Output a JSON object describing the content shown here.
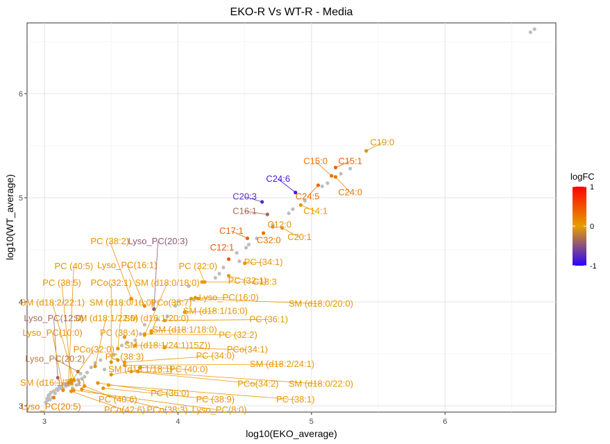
{
  "chart_data": {
    "type": "scatter",
    "title": "EKO-R Vs WT-R - Media",
    "xlabel": "log10(EKO_average)",
    "ylabel": "log10(WT_average)",
    "xlim": [
      2.87,
      6.83
    ],
    "ylim": [
      2.94,
      6.68
    ],
    "xticks": [
      "3",
      "4",
      "5",
      "6"
    ],
    "yticks": [
      "3",
      "4",
      "5",
      "6"
    ],
    "grid": true,
    "legend": {
      "title": "logFC",
      "position": "right",
      "ticks": [
        "1",
        "0",
        "-1"
      ],
      "colors": [
        "#ff0000",
        "#e69f00",
        "#2b00ff"
      ]
    },
    "gray_points": [
      [
        6.64,
        6.59
      ],
      [
        6.67,
        6.62
      ],
      [
        5.29,
        5.28
      ],
      [
        5.22,
        5.23
      ],
      [
        5.12,
        5.14
      ],
      [
        5.08,
        5.11
      ],
      [
        4.95,
        4.97
      ],
      [
        4.86,
        4.89
      ],
      [
        4.83,
        4.85
      ],
      [
        4.71,
        4.74
      ],
      [
        4.59,
        4.61
      ],
      [
        4.53,
        4.55
      ],
      [
        4.51,
        4.52
      ],
      [
        4.44,
        4.47
      ],
      [
        4.46,
        4.39
      ],
      [
        4.34,
        4.33
      ],
      [
        4.31,
        4.27
      ],
      [
        4.28,
        4.23
      ],
      [
        4.08,
        4.15
      ],
      [
        4.12,
        4.02
      ],
      [
        3.98,
        3.96
      ],
      [
        3.92,
        3.86
      ],
      [
        3.85,
        3.83
      ],
      [
        3.75,
        3.78
      ],
      [
        3.72,
        3.69
      ],
      [
        3.68,
        3.63
      ],
      [
        3.62,
        3.61
      ],
      [
        3.58,
        3.58
      ],
      [
        3.55,
        3.55
      ],
      [
        3.52,
        3.49
      ],
      [
        3.42,
        3.44
      ],
      [
        3.38,
        3.41
      ],
      [
        3.45,
        3.35
      ],
      [
        3.35,
        3.37
      ],
      [
        3.32,
        3.32
      ],
      [
        3.27,
        3.31
      ],
      [
        3.25,
        3.25
      ],
      [
        3.22,
        3.24
      ],
      [
        3.19,
        3.24
      ],
      [
        3.17,
        3.22
      ],
      [
        3.15,
        3.21
      ],
      [
        3.13,
        3.19
      ],
      [
        3.11,
        3.18
      ],
      [
        3.09,
        3.16
      ],
      [
        3.07,
        3.14
      ],
      [
        3.05,
        3.13
      ],
      [
        3.04,
        3.11
      ],
      [
        3.03,
        3.09
      ],
      [
        3.02,
        3.07
      ],
      [
        3.06,
        3.08
      ],
      [
        3.08,
        3.12
      ],
      [
        3.1,
        3.15
      ],
      [
        3.12,
        3.17
      ],
      [
        3.14,
        3.16
      ],
      [
        3.16,
        3.19
      ],
      [
        3.18,
        3.2
      ],
      [
        3.2,
        3.21
      ],
      [
        3.24,
        3.2
      ],
      [
        3.28,
        3.26
      ],
      [
        3.3,
        3.28
      ],
      [
        3.01,
        3.03
      ],
      [
        3.02,
        3.05
      ],
      [
        3.04,
        3.06
      ],
      [
        3.26,
        3.22
      ],
      [
        3.21,
        3.17
      ],
      [
        3.03,
        3.1
      ]
    ],
    "labeled_points": [
      {
        "label": "C19:0",
        "x": 5.41,
        "y": 5.45,
        "logFC": -0.05,
        "lx": 5.53,
        "ly": 5.53
      },
      {
        "label": "C15:1",
        "x": 5.18,
        "y": 5.29,
        "logFC": 0.4,
        "lx": 5.29,
        "ly": 5.35
      },
      {
        "label": "C15:0",
        "x": 5.15,
        "y": 5.21,
        "logFC": 0.3,
        "lx": 5.03,
        "ly": 5.35
      },
      {
        "label": "C24:0",
        "x": 5.18,
        "y": 5.2,
        "logFC": 0.25,
        "lx": 5.29,
        "ly": 5.05
      },
      {
        "label": "C24:6",
        "x": 4.88,
        "y": 5.05,
        "logFC": -0.85,
        "lx": 4.75,
        "ly": 5.18
      },
      {
        "label": "C24:5",
        "x": 5.05,
        "y": 5.12,
        "logFC": 0.35,
        "lx": 4.97,
        "ly": 5.01
      },
      {
        "label": "C20:3",
        "x": 4.63,
        "y": 4.96,
        "logFC": -0.75,
        "lx": 4.5,
        "ly": 5.01
      },
      {
        "label": "C14:1",
        "x": 4.92,
        "y": 4.93,
        "logFC": 0.05,
        "lx": 5.03,
        "ly": 4.87
      },
      {
        "label": "C16:1",
        "x": 4.67,
        "y": 4.84,
        "logFC": -0.35,
        "lx": 4.5,
        "ly": 4.87
      },
      {
        "label": "C12:0",
        "x": 4.71,
        "y": 4.72,
        "logFC": 0.1,
        "lx": 4.76,
        "ly": 4.74
      },
      {
        "label": "C17:1",
        "x": 4.52,
        "y": 4.61,
        "logFC": 0.4,
        "lx": 4.4,
        "ly": 4.68
      },
      {
        "label": "C32:0",
        "x": 4.64,
        "y": 4.66,
        "logFC": 0.3,
        "lx": 4.68,
        "ly": 4.59
      },
      {
        "label": "C20:1",
        "x": 4.78,
        "y": 4.71,
        "logFC": 0.1,
        "lx": 4.91,
        "ly": 4.62
      },
      {
        "label": "C12:1",
        "x": 4.38,
        "y": 4.41,
        "logFC": 0.45,
        "lx": 4.33,
        "ly": 4.52
      },
      {
        "label": "PC (34:1)",
        "x": 4.5,
        "y": 4.37,
        "logFC": 0.05,
        "lx": 4.64,
        "ly": 4.38
      },
      {
        "label": "PC (38:2)",
        "x": 3.65,
        "y": 4.03,
        "logFC": 0.1,
        "lx": 3.49,
        "ly": 4.58
      },
      {
        "label": "Lyso_PC(20:3)",
        "x": 3.82,
        "y": 3.93,
        "logFC": -0.45,
        "lx": 3.85,
        "ly": 4.58
      },
      {
        "label": "Lyso_PC(16:1)",
        "x": 3.75,
        "y": 3.96,
        "logFC": 0.15,
        "lx": 3.62,
        "ly": 4.35
      },
      {
        "label": "PC (32:0)",
        "x": 4.2,
        "y": 4.19,
        "logFC": 0.05,
        "lx": 4.15,
        "ly": 4.34
      },
      {
        "label": "PC (40:5)",
        "x": 3.18,
        "y": 3.22,
        "logFC": 0.1,
        "lx": 3.22,
        "ly": 4.34
      },
      {
        "label": "PC (32:1)",
        "x": 4.38,
        "y": 4.25,
        "logFC": 0.05,
        "lx": 4.52,
        "ly": 4.2
      },
      {
        "label": "C18:3",
        "x": 4.18,
        "y": 4.19,
        "logFC": 0.05,
        "lx": 4.65,
        "ly": 4.19
      },
      {
        "label": "PC (38:5)",
        "x": 3.2,
        "y": 3.25,
        "logFC": 0.1,
        "lx": 3.13,
        "ly": 4.18
      },
      {
        "label": "PCo(32:1)",
        "x": 3.5,
        "y": 3.42,
        "logFC": 0.1,
        "lx": 3.5,
        "ly": 4.18
      },
      {
        "label": "SM (d18:0/18:0)",
        "x": 3.75,
        "y": 3.68,
        "logFC": 0.05,
        "lx": 3.92,
        "ly": 4.18
      },
      {
        "label": "Lyso_PC(16:0)",
        "x": 4.13,
        "y": 4.04,
        "logFC": 0.05,
        "lx": 4.38,
        "ly": 4.04
      },
      {
        "label": "SM (d18:2/22:1)",
        "x": 3.22,
        "y": 3.25,
        "logFC": 0.1,
        "lx": 3.06,
        "ly": 3.99
      },
      {
        "label": "SM (d18:0/16:0)",
        "x": 3.55,
        "y": 3.55,
        "logFC": 0.05,
        "lx": 3.58,
        "ly": 3.99
      },
      {
        "label": "PCo(38:7)",
        "x": 4.1,
        "y": 4.03,
        "logFC": 0.05,
        "lx": 3.95,
        "ly": 3.99
      },
      {
        "label": "SM (d18:0/20:0)",
        "x": 4.15,
        "y": 4.03,
        "logFC": 0.05,
        "lx": 5.07,
        "ly": 3.98
      },
      {
        "label": "SM (d18:1/16:0)",
        "x": 4.05,
        "y": 3.9,
        "logFC": 0.05,
        "lx": 4.28,
        "ly": 3.91
      },
      {
        "label": "SM (d18:1/20:0)",
        "x": 3.8,
        "y": 3.7,
        "logFC": 0.05,
        "lx": 3.84,
        "ly": 3.84
      },
      {
        "label": "Lyso_PC(12:0)",
        "x": 3.1,
        "y": 3.27,
        "logFC": -0.35,
        "lx": 3.07,
        "ly": 3.84
      },
      {
        "label": "SM (d18:1/22:0)",
        "x": 3.38,
        "y": 3.38,
        "logFC": 0.1,
        "lx": 3.46,
        "ly": 3.84
      },
      {
        "label": "PC (36:1)",
        "x": 3.9,
        "y": 3.82,
        "logFC": 0.05,
        "lx": 4.68,
        "ly": 3.83
      },
      {
        "label": "SM (d18:1/18:0)",
        "x": 3.8,
        "y": 3.72,
        "logFC": 0.05,
        "lx": 4.05,
        "ly": 3.73
      },
      {
        "label": "Lyso_PC(10:0)",
        "x": 3.14,
        "y": 3.15,
        "logFC": 0.1,
        "lx": 3.06,
        "ly": 3.7
      },
      {
        "label": "PC (38:4)",
        "x": 3.6,
        "y": 3.66,
        "logFC": 0.05,
        "lx": 3.56,
        "ly": 3.7
      },
      {
        "label": "PC (32:2)",
        "x": 3.75,
        "y": 3.69,
        "logFC": 0.05,
        "lx": 4.45,
        "ly": 3.68
      },
      {
        "label": "SM (d18:1/24:1)15Z))",
        "x": 3.68,
        "y": 3.58,
        "logFC": 0.05,
        "lx": 3.92,
        "ly": 3.58
      },
      {
        "label": "PCo(32:0)",
        "x": 3.2,
        "y": 3.23,
        "logFC": 0.1,
        "lx": 3.37,
        "ly": 3.54
      },
      {
        "label": "PCo(34:1)",
        "x": 3.9,
        "y": 3.56,
        "logFC": 0.05,
        "lx": 4.52,
        "ly": 3.54
      },
      {
        "label": "PC (38:3)",
        "x": 3.55,
        "y": 3.44,
        "logFC": 0.1,
        "lx": 3.6,
        "ly": 3.47
      },
      {
        "label": "PC (34:0)",
        "x": 3.6,
        "y": 3.42,
        "logFC": 0.05,
        "lx": 4.28,
        "ly": 3.48
      },
      {
        "label": "Lyso_PC(20:2)",
        "x": 3.25,
        "y": 3.33,
        "logFC": -0.25,
        "lx": 3.08,
        "ly": 3.45
      },
      {
        "label": "SM (d18:2/24:1)",
        "x": 3.6,
        "y": 3.39,
        "logFC": 0.05,
        "lx": 4.78,
        "ly": 3.4
      },
      {
        "label": "SM (d18:1/18:1)",
        "x": 3.5,
        "y": 3.3,
        "logFC": 0.1,
        "lx": 3.72,
        "ly": 3.35
      },
      {
        "label": "PC (40:0)",
        "x": 3.72,
        "y": 3.37,
        "logFC": 0.05,
        "lx": 4.08,
        "ly": 3.35
      },
      {
        "label": "SM (d16:1/24:1)",
        "x": 3.2,
        "y": 3.22,
        "logFC": 0.1,
        "lx": 3.06,
        "ly": 3.22
      },
      {
        "label": "PCo(34:2)",
        "x": 3.65,
        "y": 3.33,
        "logFC": 0.05,
        "lx": 4.6,
        "ly": 3.21
      },
      {
        "label": "SM (d18:0/22:0)",
        "x": 3.7,
        "y": 3.33,
        "logFC": 0.05,
        "lx": 5.07,
        "ly": 3.21
      },
      {
        "label": "PC (36:0)",
        "x": 3.4,
        "y": 3.22,
        "logFC": 0.1,
        "lx": 3.94,
        "ly": 3.12
      },
      {
        "label": "PC (40:6)",
        "x": 3.3,
        "y": 3.19,
        "logFC": 0.1,
        "lx": 3.55,
        "ly": 3.06
      },
      {
        "label": "PC (38:9)",
        "x": 3.44,
        "y": 3.17,
        "logFC": 0.1,
        "lx": 4.28,
        "ly": 3.06
      },
      {
        "label": "PC (38:1)",
        "x": 3.48,
        "y": 3.2,
        "logFC": 0.05,
        "lx": 4.88,
        "ly": 3.06
      },
      {
        "label": "Lyso_PC(20:5)",
        "x": 3.07,
        "y": 3.08,
        "logFC": 0.2,
        "lx": 3.05,
        "ly": 2.99
      },
      {
        "label": "PCo(42:6)",
        "x": 3.2,
        "y": 3.14,
        "logFC": 0.1,
        "lx": 3.6,
        "ly": 2.96
      },
      {
        "label": "PCo(38:3)",
        "x": 3.28,
        "y": 3.16,
        "logFC": 0.1,
        "lx": 3.92,
        "ly": 2.96
      },
      {
        "label": "Lyso_PC(8:0)",
        "x": 3.22,
        "y": 3.15,
        "logFC": 0.05,
        "lx": 4.31,
        "ly": 2.96
      }
    ]
  }
}
